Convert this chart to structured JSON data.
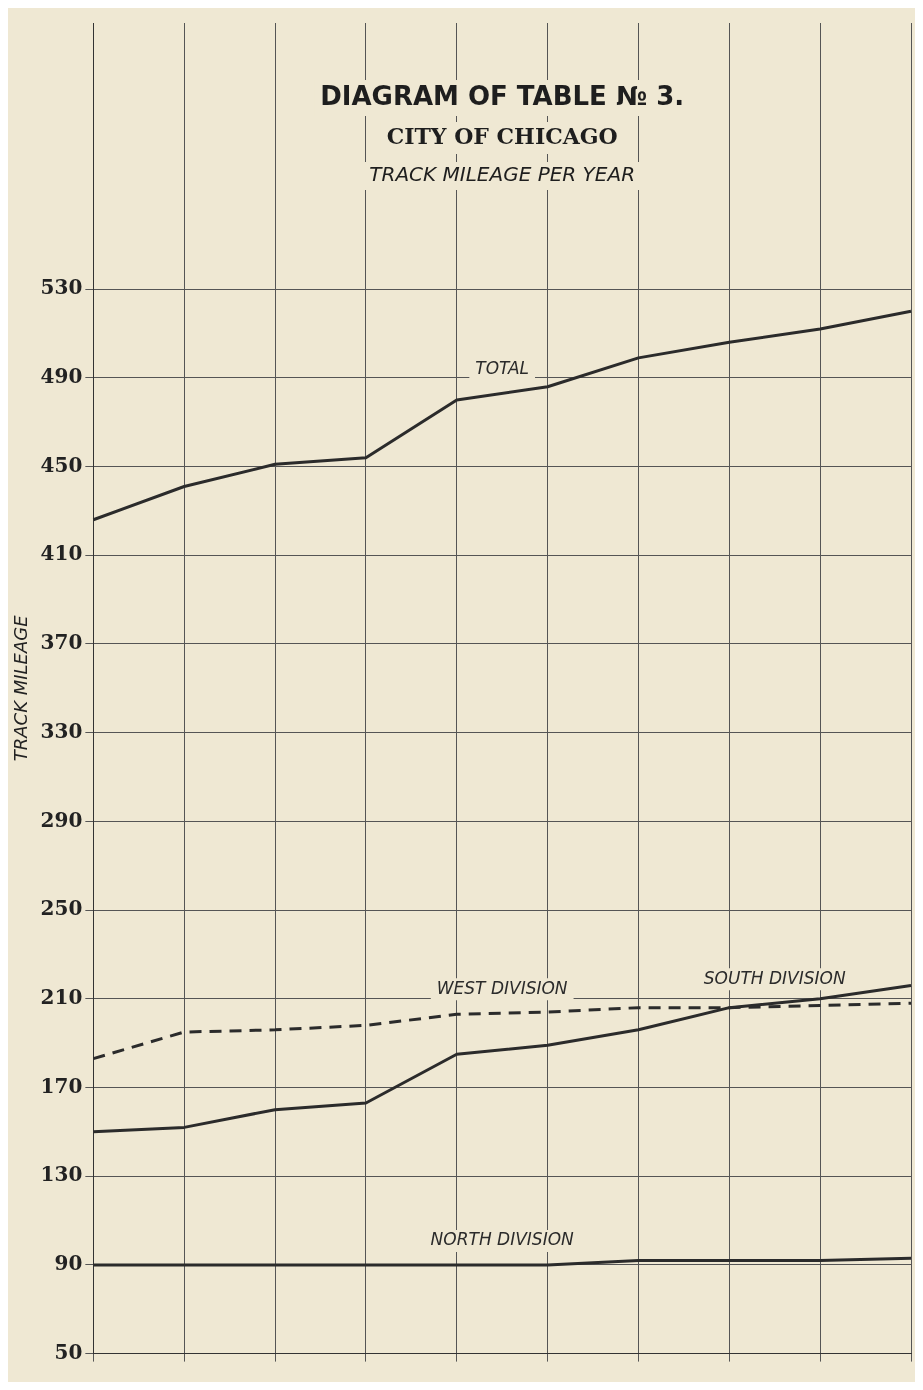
{
  "chart_data": {
    "type": "line",
    "title": "DIAGRAM OF TABLE № 3.",
    "subtitle": "CITY OF CHICAGO",
    "annotations": [
      "TRACK MILEAGE PER YEAR"
    ],
    "ylabel": "TRACK MILEAGE",
    "categories": [
      null,
      null,
      null,
      null,
      null,
      null,
      null,
      null,
      null,
      null
    ],
    "series": [
      {
        "name": "TOTAL",
        "color": "#2b2b2b",
        "values": [
          426,
          441,
          451,
          454,
          480,
          486,
          499,
          506,
          512,
          520
        ]
      },
      {
        "name": "WEST DIVISION",
        "color": "#2b2b2b",
        "line_style": "dashed",
        "values": [
          183,
          195,
          196,
          198,
          203,
          204,
          206,
          206,
          207,
          208
        ]
      },
      {
        "name": "SOUTH DIVISION",
        "color": "#2b2b2b",
        "values": [
          150,
          152,
          160,
          163,
          185,
          189,
          196,
          206,
          210,
          216
        ]
      },
      {
        "name": "NORTH DIVISION",
        "color": "#2b2b2b",
        "values": [
          90,
          90,
          90,
          90,
          90,
          90,
          92,
          92,
          92,
          93
        ]
      }
    ],
    "ylim": [
      50,
      650
    ],
    "yticks": [
      50,
      90,
      130,
      170,
      210,
      250,
      290,
      330,
      370,
      410,
      450,
      490,
      530
    ],
    "grid": true,
    "legend": false,
    "marker": "none",
    "line_style": "solid"
  }
}
